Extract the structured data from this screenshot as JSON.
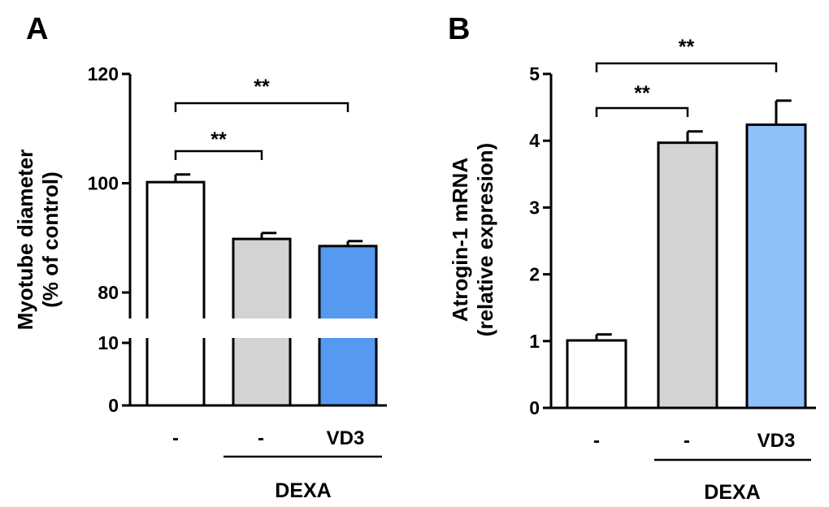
{
  "chart_data": [
    {
      "panel": "A",
      "type": "bar",
      "ylabel_line1": "Myotube diameter",
      "ylabel_line2": "(% of control)",
      "categories": [
        "-",
        "-",
        "VD3"
      ],
      "group_label": "DEXA",
      "values": [
        100.2,
        89.8,
        88.5
      ],
      "errors": [
        1.4,
        1.1,
        0.9
      ],
      "colors": [
        "#ffffff",
        "#d3d3d3",
        "#5599f0"
      ],
      "axis_break": true,
      "ylim_lower": [
        0,
        10
      ],
      "ylim_upper": [
        80,
        120
      ],
      "yticks_lower": [
        0,
        10
      ],
      "yticks_upper": [
        80,
        100,
        120
      ],
      "significance": [
        {
          "from": 0,
          "to": 1,
          "label": "**"
        },
        {
          "from": 0,
          "to": 2,
          "label": "**"
        }
      ]
    },
    {
      "panel": "B",
      "type": "bar",
      "ylabel_line1": "Atrogin-1 mRNA",
      "ylabel_line2": "(relative expresion)",
      "categories": [
        "-",
        "-",
        "VD3"
      ],
      "group_label": "DEXA",
      "values": [
        1.01,
        3.97,
        4.24
      ],
      "errors": [
        0.09,
        0.17,
        0.36
      ],
      "colors": [
        "#ffffff",
        "#d3d3d3",
        "#90c0f8"
      ],
      "ylim": [
        0,
        5
      ],
      "yticks": [
        0,
        1,
        2,
        3,
        4,
        5
      ],
      "significance": [
        {
          "from": 0,
          "to": 1,
          "label": "**"
        },
        {
          "from": 0,
          "to": 2,
          "label": "**"
        }
      ]
    }
  ]
}
